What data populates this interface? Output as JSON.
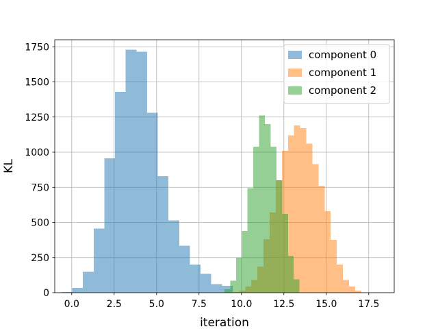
{
  "chart_data": {
    "type": "bar",
    "title": "",
    "xlabel": "iteration",
    "ylabel": "KL",
    "xlim": [
      -1.0,
      19.0
    ],
    "ylim": [
      0,
      1800
    ],
    "grid": true,
    "legend_position": "top-right",
    "x_ticks": [
      0.0,
      2.5,
      5.0,
      7.5,
      10.0,
      12.5,
      15.0,
      17.5
    ],
    "x_tick_labels": [
      "0.0",
      "2.5",
      "5.0",
      "7.5",
      "10.0",
      "12.5",
      "15.0",
      "17.5"
    ],
    "y_ticks": [
      0,
      250,
      500,
      750,
      1000,
      1250,
      1500,
      1750
    ],
    "y_tick_labels": [
      "0",
      "250",
      "500",
      "750",
      "1000",
      "1250",
      "1500",
      "1750"
    ],
    "series": [
      {
        "name": "component 0",
        "color": "#1f77b4",
        "alpha": 0.5,
        "bin_edges": [
          -0.6,
          0.03,
          0.66,
          1.29,
          1.92,
          2.55,
          3.18,
          3.81,
          4.44,
          5.07,
          5.7,
          6.33,
          6.96,
          7.59,
          8.22,
          8.85,
          9.48
        ],
        "counts": [
          5,
          35,
          150,
          455,
          955,
          1430,
          1730,
          1715,
          1280,
          830,
          515,
          335,
          200,
          135,
          60,
          50
        ]
      },
      {
        "name": "component 1",
        "color": "#ff7f0e",
        "alpha": 0.5,
        "bin_edges": [
          9.5,
          9.86,
          10.22,
          10.58,
          10.94,
          11.3,
          11.66,
          12.02,
          12.38,
          12.74,
          13.1,
          13.46,
          13.82,
          14.18,
          14.54,
          14.9,
          15.26,
          15.62,
          15.98,
          16.34,
          16.7,
          17.06
        ],
        "counts": [
          5,
          15,
          45,
          90,
          185,
          380,
          570,
          800,
          1010,
          1120,
          1190,
          1170,
          1060,
          915,
          760,
          580,
          375,
          200,
          90,
          45,
          15
        ]
      },
      {
        "name": "component 2",
        "color": "#2ca02c",
        "alpha": 0.5,
        "bin_edges": [
          9.0,
          9.34,
          9.68,
          10.02,
          10.36,
          10.7,
          11.04,
          11.38,
          11.72,
          12.06,
          12.4,
          12.74,
          13.08,
          13.42
        ],
        "counts": [
          25,
          85,
          250,
          440,
          745,
          1040,
          1260,
          1200,
          1040,
          800,
          560,
          260,
          95
        ]
      }
    ]
  }
}
